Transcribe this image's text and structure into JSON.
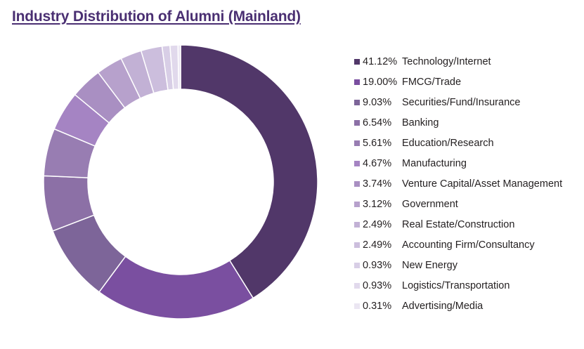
{
  "title": "Industry Distribution of Alumni (Mainland)",
  "chart_data": {
    "type": "pie",
    "donut": true,
    "legend_position": "right",
    "slices": [
      {
        "label": "Technology/Internet",
        "pct_label": "41.12%",
        "value": 41.12,
        "color": "#513769"
      },
      {
        "label": "FMCG/Trade",
        "pct_label": "19.00%",
        "value": 19.0,
        "color": "#7a4fa0"
      },
      {
        "label": "Securities/Fund/Insurance",
        "pct_label": "9.03%",
        "value": 9.03,
        "color": "#7d6599"
      },
      {
        "label": "Banking",
        "pct_label": "6.54%",
        "value": 6.54,
        "color": "#8c70a6"
      },
      {
        "label": "Education/Research",
        "pct_label": "5.61%",
        "value": 5.61,
        "color": "#987db2"
      },
      {
        "label": "Manufacturing",
        "pct_label": "4.67%",
        "value": 4.67,
        "color": "#a584c3"
      },
      {
        "label": "Venture Capital/Asset Management",
        "pct_label": "3.74%",
        "value": 3.74,
        "color": "#a98fc2"
      },
      {
        "label": "Government",
        "pct_label": "3.12%",
        "value": 3.12,
        "color": "#b7a1cc"
      },
      {
        "label": "Real Estate/Construction",
        "pct_label": "2.49%",
        "value": 2.49,
        "color": "#c2b1d5"
      },
      {
        "label": "Accounting Firm/Consultancy",
        "pct_label": "2.49%",
        "value": 2.49,
        "color": "#ccbedd"
      },
      {
        "label": "New Energy",
        "pct_label": "0.93%",
        "value": 0.93,
        "color": "#d8cee6"
      },
      {
        "label": "Logistics/Transportation",
        "pct_label": "0.93%",
        "value": 0.93,
        "color": "#e1d9ec"
      },
      {
        "label": "Advertising/Media",
        "pct_label": "0.31%",
        "value": 0.31,
        "color": "#ebe6f2"
      }
    ]
  }
}
